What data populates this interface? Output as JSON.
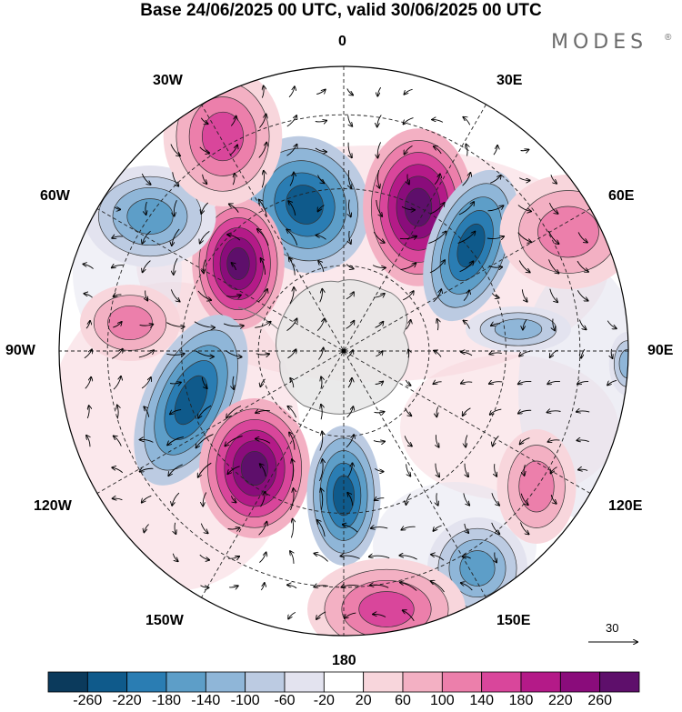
{
  "title": "Base 24/06/2025 00 UTC, valid 30/06/2025 00 UTC",
  "brand": {
    "name": "MODES",
    "mark": "®"
  },
  "longitude_labels": [
    {
      "key": "lon-0",
      "text": "0"
    },
    {
      "key": "lon-30e",
      "text": "30E"
    },
    {
      "key": "lon-60e",
      "text": "60E"
    },
    {
      "key": "lon-90e",
      "text": "90E"
    },
    {
      "key": "lon-120e",
      "text": "120E"
    },
    {
      "key": "lon-150e",
      "text": "150E"
    },
    {
      "key": "lon-180",
      "text": "180"
    },
    {
      "key": "lon-150w",
      "text": "150W"
    },
    {
      "key": "lon-120w",
      "text": "120W"
    },
    {
      "key": "lon-90w",
      "text": "90W"
    },
    {
      "key": "lon-60w",
      "text": "60W"
    },
    {
      "key": "lon-30w",
      "text": "30W"
    }
  ],
  "reference_vector": {
    "label": "30"
  },
  "colorbar": {
    "ticks": [
      "-260",
      "-220",
      "-180",
      "-140",
      "-100",
      "-60",
      "-20",
      "20",
      "60",
      "100",
      "140",
      "180",
      "220",
      "260"
    ],
    "colors": [
      "#0b3a5c",
      "#0f5a8b",
      "#2a7db3",
      "#5d9ec8",
      "#8fb6d8",
      "#bccbe2",
      "#e3e3ef",
      "#ffffff",
      "#f8d6dc",
      "#f3b0c3",
      "#ec7fab",
      "#d9469b",
      "#b41a88",
      "#8a0c7b",
      "#5e0f6b"
    ]
  },
  "anomaly_centers": [
    {
      "sign": "negative",
      "strength": 3
    },
    {
      "sign": "positive",
      "strength": 4
    },
    {
      "sign": "negative",
      "strength": 3
    },
    {
      "sign": "positive",
      "strength": 4
    },
    {
      "sign": "negative",
      "strength": 3
    },
    {
      "sign": "positive",
      "strength": 4
    },
    {
      "sign": "negative",
      "strength": 3
    },
    {
      "sign": "negative",
      "strength": 2
    },
    {
      "sign": "positive",
      "strength": 2
    },
    {
      "sign": "positive",
      "strength": 1
    },
    {
      "sign": "negative",
      "strength": 1
    },
    {
      "sign": "positive",
      "strength": 1
    },
    {
      "sign": "negative",
      "strength": 2
    },
    {
      "sign": "positive",
      "strength": 2
    },
    {
      "sign": "positive",
      "strength": 1
    },
    {
      "sign": "negative",
      "strength": 1
    }
  ]
}
